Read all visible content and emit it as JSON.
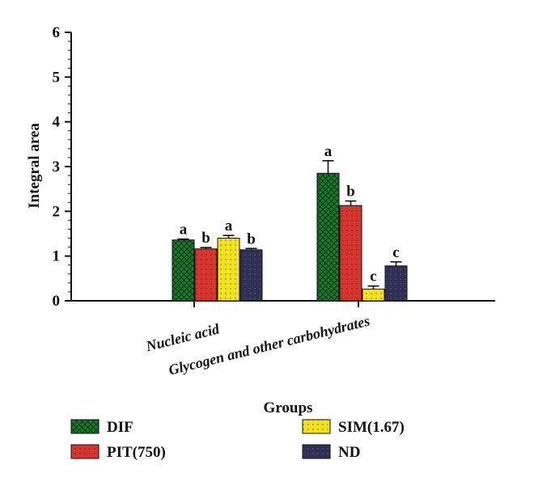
{
  "chart_data": {
    "type": "bar",
    "title": "",
    "xlabel": "Groups",
    "ylabel": "Integral area",
    "ylim": [
      0,
      6
    ],
    "yticks": [
      "0",
      "1",
      "2",
      "3",
      "4",
      "5",
      "6"
    ],
    "categories": [
      "Nucleic acid",
      "Glycogen and other carbohydrates"
    ],
    "series": [
      {
        "name": "DIF",
        "values": [
          1.36,
          2.85
        ],
        "errors": [
          0.02,
          0.28
        ],
        "sig": [
          "a",
          "a"
        ],
        "color": "#1a7a2e"
      },
      {
        "name": "PIT(750)",
        "values": [
          1.16,
          2.13
        ],
        "errors": [
          0.03,
          0.1
        ],
        "sig": [
          "b",
          "b"
        ],
        "color": "#d6362f"
      },
      {
        "name": "SIM(1.67)",
        "values": [
          1.4,
          0.26
        ],
        "errors": [
          0.06,
          0.07
        ],
        "sig": [
          "a",
          "c"
        ],
        "color": "#f2e21b"
      },
      {
        "name": "ND",
        "values": [
          1.14,
          0.78
        ],
        "errors": [
          0.03,
          0.09
        ],
        "sig": [
          "b",
          "c"
        ],
        "color": "#2f2f55"
      }
    ],
    "legend_position": "bottom"
  }
}
